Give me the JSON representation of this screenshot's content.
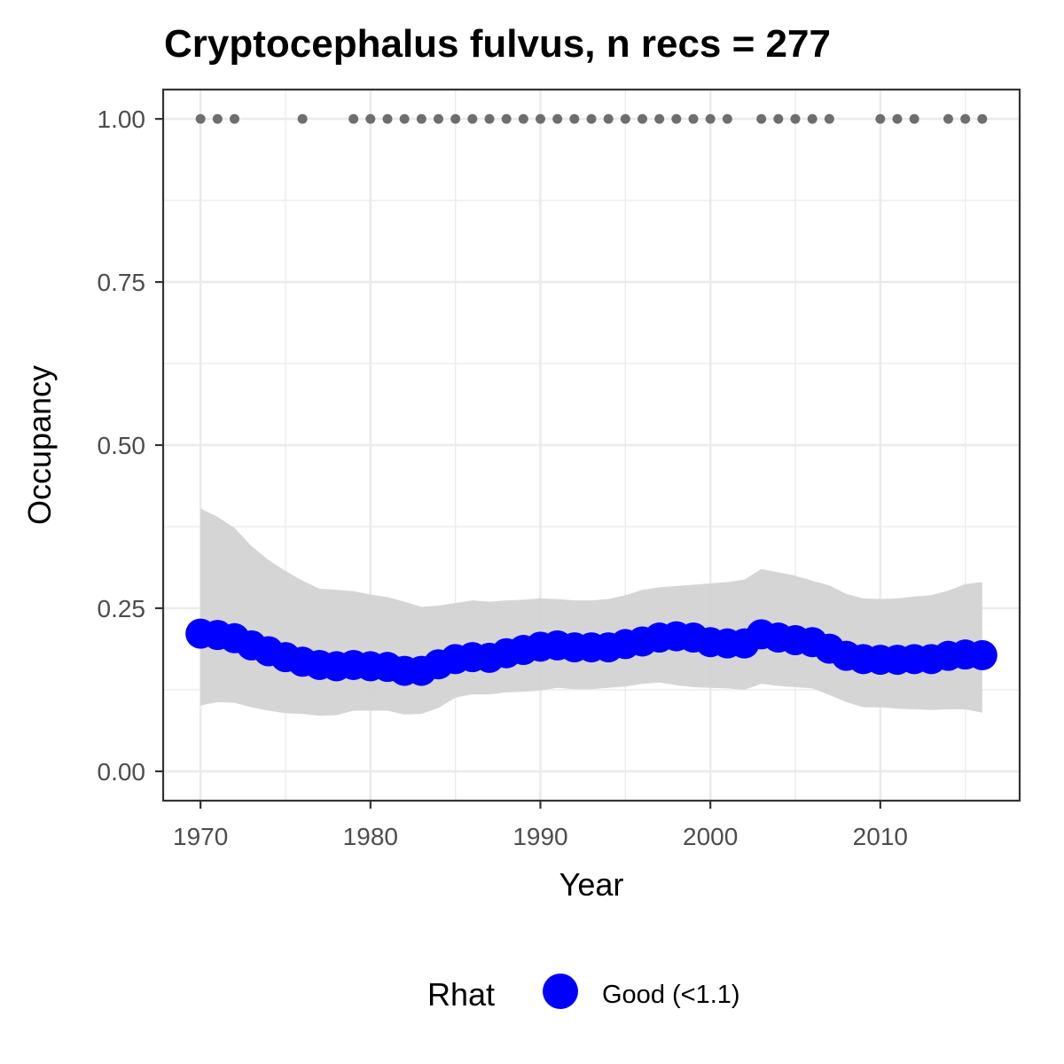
{
  "chart_data": {
    "type": "line",
    "title": "Cryptocephalus fulvus, n recs = 277",
    "xlabel": "Year",
    "ylabel": "Occupancy",
    "xlim": [
      1967.8,
      2018.2
    ],
    "ylim": [
      -0.045,
      1.045
    ],
    "x_ticks": [
      1970,
      1980,
      1990,
      2000,
      2010
    ],
    "x_tick_labels": [
      "1970",
      "1980",
      "1990",
      "2000",
      "2010"
    ],
    "y_ticks": [
      0,
      0.25,
      0.5,
      0.75,
      1.0
    ],
    "y_tick_labels": [
      "0.00",
      "0.25",
      "0.50",
      "0.75",
      "1.00"
    ],
    "grid": true,
    "legend": {
      "title": "Rhat",
      "position": "bottom",
      "entries": [
        {
          "label": "Good (<1.1)",
          "color": "#0000ff"
        }
      ]
    },
    "colors": {
      "estimate": "#0000ff",
      "ribbon": "#d3d3d3",
      "records": "#6e6e6e",
      "grid": "#ebebeb",
      "panel_border": "#333333"
    },
    "series": [
      {
        "role": "estimate",
        "x": [
          1970,
          1971,
          1972,
          1973,
          1974,
          1975,
          1976,
          1977,
          1978,
          1979,
          1980,
          1981,
          1982,
          1983,
          1984,
          1985,
          1986,
          1987,
          1988,
          1989,
          1990,
          1991,
          1992,
          1993,
          1994,
          1995,
          1996,
          1997,
          1998,
          1999,
          2000,
          2001,
          2002,
          2003,
          2004,
          2005,
          2006,
          2007,
          2008,
          2009,
          2010,
          2011,
          2012,
          2013,
          2014,
          2015,
          2016
        ],
        "y": [
          0.211,
          0.209,
          0.204,
          0.193,
          0.184,
          0.175,
          0.168,
          0.163,
          0.161,
          0.163,
          0.161,
          0.16,
          0.154,
          0.154,
          0.164,
          0.172,
          0.175,
          0.174,
          0.181,
          0.186,
          0.191,
          0.193,
          0.19,
          0.19,
          0.19,
          0.195,
          0.199,
          0.205,
          0.207,
          0.205,
          0.198,
          0.196,
          0.196,
          0.21,
          0.205,
          0.201,
          0.198,
          0.188,
          0.177,
          0.172,
          0.171,
          0.171,
          0.172,
          0.172,
          0.177,
          0.179,
          0.178
        ]
      },
      {
        "role": "credible-interval",
        "x": [
          1970,
          1971,
          1972,
          1973,
          1974,
          1975,
          1976,
          1977,
          1978,
          1979,
          1980,
          1981,
          1982,
          1983,
          1984,
          1985,
          1986,
          1987,
          1988,
          1989,
          1990,
          1991,
          1992,
          1993,
          1994,
          1995,
          1996,
          1997,
          1998,
          1999,
          2000,
          2001,
          2002,
          2003,
          2004,
          2005,
          2006,
          2007,
          2008,
          2009,
          2010,
          2011,
          2012,
          2013,
          2014,
          2015,
          2016
        ],
        "lower": [
          0.101,
          0.106,
          0.105,
          0.098,
          0.093,
          0.089,
          0.088,
          0.085,
          0.086,
          0.093,
          0.093,
          0.093,
          0.087,
          0.088,
          0.097,
          0.113,
          0.118,
          0.118,
          0.121,
          0.122,
          0.124,
          0.128,
          0.126,
          0.126,
          0.128,
          0.13,
          0.134,
          0.136,
          0.132,
          0.129,
          0.128,
          0.127,
          0.125,
          0.134,
          0.131,
          0.129,
          0.127,
          0.117,
          0.106,
          0.098,
          0.098,
          0.096,
          0.095,
          0.094,
          0.095,
          0.095,
          0.09
        ],
        "upper": [
          0.403,
          0.39,
          0.373,
          0.345,
          0.324,
          0.307,
          0.292,
          0.28,
          0.278,
          0.276,
          0.271,
          0.267,
          0.26,
          0.252,
          0.254,
          0.258,
          0.262,
          0.26,
          0.262,
          0.263,
          0.265,
          0.264,
          0.262,
          0.262,
          0.264,
          0.27,
          0.278,
          0.282,
          0.284,
          0.286,
          0.288,
          0.29,
          0.294,
          0.31,
          0.305,
          0.3,
          0.292,
          0.285,
          0.272,
          0.265,
          0.264,
          0.265,
          0.268,
          0.27,
          0.277,
          0.287,
          0.29
        ]
      },
      {
        "role": "records",
        "x": [
          1970,
          1971,
          1972,
          1976,
          1979,
          1980,
          1981,
          1982,
          1983,
          1984,
          1985,
          1986,
          1987,
          1988,
          1989,
          1990,
          1991,
          1992,
          1993,
          1994,
          1995,
          1996,
          1997,
          1998,
          1999,
          2000,
          2001,
          2003,
          2004,
          2005,
          2006,
          2007,
          2010,
          2011,
          2012,
          2014,
          2015,
          2016
        ],
        "y": 1.0
      }
    ]
  }
}
